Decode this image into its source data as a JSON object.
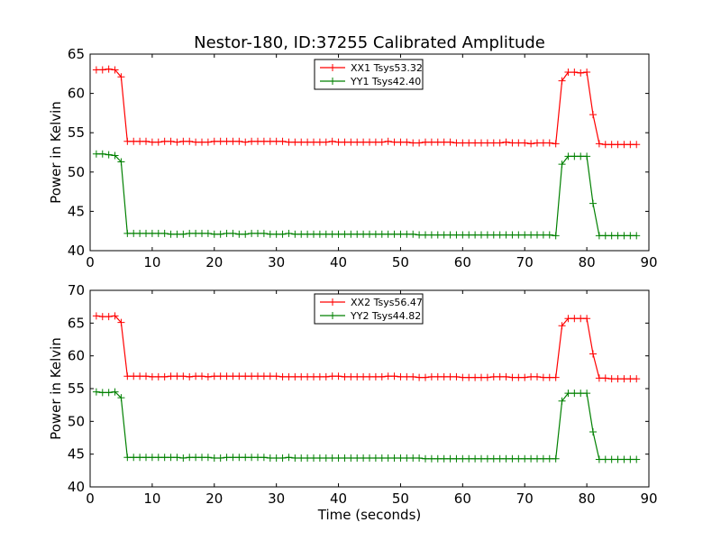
{
  "figure_title": "Nestor-180, ID:37255 Calibrated Amplitude",
  "chart_data": [
    {
      "type": "line",
      "title": "Nestor-180, ID:37255 Calibrated Amplitude",
      "xlabel": "",
      "ylabel": "Power in Kelvin",
      "xlim": [
        0,
        90
      ],
      "ylim": [
        40,
        65
      ],
      "xticks": [
        0,
        10,
        20,
        30,
        40,
        50,
        60,
        70,
        80,
        90
      ],
      "yticks": [
        40,
        45,
        50,
        55,
        60,
        65
      ],
      "grid": false,
      "legend_position": "top-center",
      "series": [
        {
          "name": "XX1 Tsys53.32",
          "color": "#ff0000",
          "x": [
            1,
            2,
            3,
            4,
            5,
            6,
            7,
            8,
            9,
            10,
            11,
            12,
            13,
            14,
            15,
            16,
            17,
            18,
            19,
            20,
            21,
            22,
            23,
            24,
            25,
            26,
            27,
            28,
            29,
            30,
            31,
            32,
            33,
            34,
            35,
            36,
            37,
            38,
            39,
            40,
            41,
            42,
            43,
            44,
            45,
            46,
            47,
            48,
            49,
            50,
            51,
            52,
            53,
            54,
            55,
            56,
            57,
            58,
            59,
            60,
            61,
            62,
            63,
            64,
            65,
            66,
            67,
            68,
            69,
            70,
            71,
            72,
            73,
            74,
            75,
            76,
            77,
            78,
            79,
            80,
            81,
            82,
            83,
            84,
            85,
            86,
            87,
            88
          ],
          "y": [
            63.0,
            63.0,
            63.1,
            63.0,
            62.1,
            53.9,
            53.9,
            53.9,
            53.9,
            53.8,
            53.8,
            53.9,
            53.9,
            53.8,
            53.9,
            53.9,
            53.8,
            53.8,
            53.8,
            53.9,
            53.9,
            53.9,
            53.9,
            53.9,
            53.8,
            53.9,
            53.9,
            53.9,
            53.9,
            53.9,
            53.9,
            53.8,
            53.8,
            53.8,
            53.8,
            53.8,
            53.8,
            53.8,
            53.9,
            53.8,
            53.8,
            53.8,
            53.8,
            53.8,
            53.8,
            53.8,
            53.8,
            53.9,
            53.8,
            53.8,
            53.8,
            53.7,
            53.7,
            53.8,
            53.8,
            53.8,
            53.8,
            53.8,
            53.7,
            53.7,
            53.7,
            53.7,
            53.7,
            53.7,
            53.7,
            53.7,
            53.8,
            53.7,
            53.7,
            53.7,
            53.6,
            53.7,
            53.7,
            53.7,
            53.6,
            61.6,
            62.7,
            62.7,
            62.6,
            62.7,
            57.3,
            53.6,
            53.5,
            53.5,
            53.5,
            53.5,
            53.5,
            53.5
          ]
        },
        {
          "name": "YY1 Tsys42.40",
          "color": "#008000",
          "x": [
            1,
            2,
            3,
            4,
            5,
            6,
            7,
            8,
            9,
            10,
            11,
            12,
            13,
            14,
            15,
            16,
            17,
            18,
            19,
            20,
            21,
            22,
            23,
            24,
            25,
            26,
            27,
            28,
            29,
            30,
            31,
            32,
            33,
            34,
            35,
            36,
            37,
            38,
            39,
            40,
            41,
            42,
            43,
            44,
            45,
            46,
            47,
            48,
            49,
            50,
            51,
            52,
            53,
            54,
            55,
            56,
            57,
            58,
            59,
            60,
            61,
            62,
            63,
            64,
            65,
            66,
            67,
            68,
            69,
            70,
            71,
            72,
            73,
            74,
            75,
            76,
            77,
            78,
            79,
            80,
            81,
            82,
            83,
            84,
            85,
            86,
            87,
            88
          ],
          "y": [
            52.3,
            52.3,
            52.2,
            52.1,
            51.3,
            42.2,
            42.2,
            42.2,
            42.2,
            42.2,
            42.2,
            42.2,
            42.1,
            42.1,
            42.1,
            42.2,
            42.2,
            42.2,
            42.2,
            42.1,
            42.1,
            42.2,
            42.2,
            42.1,
            42.1,
            42.2,
            42.2,
            42.2,
            42.1,
            42.1,
            42.1,
            42.2,
            42.1,
            42.1,
            42.1,
            42.1,
            42.1,
            42.1,
            42.1,
            42.1,
            42.1,
            42.1,
            42.1,
            42.1,
            42.1,
            42.1,
            42.1,
            42.1,
            42.1,
            42.1,
            42.1,
            42.1,
            42.0,
            42.0,
            42.0,
            42.0,
            42.0,
            42.0,
            42.0,
            42.0,
            42.0,
            42.0,
            42.0,
            42.0,
            42.0,
            42.0,
            42.0,
            42.0,
            42.0,
            42.0,
            42.0,
            42.0,
            42.0,
            42.0,
            41.9,
            51.0,
            52.0,
            52.0,
            52.0,
            52.0,
            46.0,
            41.9,
            41.9,
            41.9,
            41.9,
            41.9,
            41.9,
            41.9
          ]
        }
      ]
    },
    {
      "type": "line",
      "title": "",
      "xlabel": "Time (seconds)",
      "ylabel": "Power in Kelvin",
      "xlim": [
        0,
        90
      ],
      "ylim": [
        40,
        70
      ],
      "xticks": [
        0,
        10,
        20,
        30,
        40,
        50,
        60,
        70,
        80,
        90
      ],
      "yticks": [
        40,
        45,
        50,
        55,
        60,
        65,
        70
      ],
      "grid": false,
      "legend_position": "top-center",
      "series": [
        {
          "name": "XX2 Tsys56.47",
          "color": "#ff0000",
          "x": [
            1,
            2,
            3,
            4,
            5,
            6,
            7,
            8,
            9,
            10,
            11,
            12,
            13,
            14,
            15,
            16,
            17,
            18,
            19,
            20,
            21,
            22,
            23,
            24,
            25,
            26,
            27,
            28,
            29,
            30,
            31,
            32,
            33,
            34,
            35,
            36,
            37,
            38,
            39,
            40,
            41,
            42,
            43,
            44,
            45,
            46,
            47,
            48,
            49,
            50,
            51,
            52,
            53,
            54,
            55,
            56,
            57,
            58,
            59,
            60,
            61,
            62,
            63,
            64,
            65,
            66,
            67,
            68,
            69,
            70,
            71,
            72,
            73,
            74,
            75,
            76,
            77,
            78,
            79,
            80,
            81,
            82,
            83,
            84,
            85,
            86,
            87,
            88
          ],
          "y": [
            66.1,
            66.0,
            66.0,
            66.1,
            65.1,
            56.9,
            56.9,
            56.9,
            56.9,
            56.8,
            56.8,
            56.8,
            56.9,
            56.9,
            56.9,
            56.8,
            56.9,
            56.9,
            56.8,
            56.9,
            56.9,
            56.9,
            56.9,
            56.9,
            56.9,
            56.9,
            56.9,
            56.9,
            56.9,
            56.9,
            56.8,
            56.8,
            56.8,
            56.8,
            56.8,
            56.8,
            56.8,
            56.8,
            56.9,
            56.9,
            56.8,
            56.8,
            56.8,
            56.8,
            56.8,
            56.8,
            56.8,
            56.9,
            56.9,
            56.8,
            56.8,
            56.8,
            56.7,
            56.7,
            56.8,
            56.8,
            56.8,
            56.8,
            56.8,
            56.7,
            56.7,
            56.7,
            56.7,
            56.7,
            56.8,
            56.8,
            56.8,
            56.7,
            56.7,
            56.7,
            56.8,
            56.8,
            56.7,
            56.7,
            56.7,
            64.6,
            65.7,
            65.7,
            65.7,
            65.7,
            60.3,
            56.6,
            56.6,
            56.5,
            56.5,
            56.5,
            56.5,
            56.5
          ]
        },
        {
          "name": "YY2 Tsys44.82",
          "color": "#008000",
          "x": [
            1,
            2,
            3,
            4,
            5,
            6,
            7,
            8,
            9,
            10,
            11,
            12,
            13,
            14,
            15,
            16,
            17,
            18,
            19,
            20,
            21,
            22,
            23,
            24,
            25,
            26,
            27,
            28,
            29,
            30,
            31,
            32,
            33,
            34,
            35,
            36,
            37,
            38,
            39,
            40,
            41,
            42,
            43,
            44,
            45,
            46,
            47,
            48,
            49,
            50,
            51,
            52,
            53,
            54,
            55,
            56,
            57,
            58,
            59,
            60,
            61,
            62,
            63,
            64,
            65,
            66,
            67,
            68,
            69,
            70,
            71,
            72,
            73,
            74,
            75,
            76,
            77,
            78,
            79,
            80,
            81,
            82,
            83,
            84,
            85,
            86,
            87,
            88
          ],
          "y": [
            54.5,
            54.4,
            54.4,
            54.5,
            53.6,
            44.5,
            44.5,
            44.5,
            44.5,
            44.5,
            44.5,
            44.5,
            44.5,
            44.5,
            44.4,
            44.5,
            44.5,
            44.5,
            44.5,
            44.4,
            44.4,
            44.5,
            44.5,
            44.5,
            44.5,
            44.5,
            44.5,
            44.5,
            44.4,
            44.4,
            44.4,
            44.5,
            44.4,
            44.4,
            44.4,
            44.4,
            44.4,
            44.4,
            44.4,
            44.4,
            44.4,
            44.4,
            44.4,
            44.4,
            44.4,
            44.4,
            44.4,
            44.4,
            44.4,
            44.4,
            44.4,
            44.4,
            44.4,
            44.3,
            44.3,
            44.3,
            44.3,
            44.3,
            44.3,
            44.3,
            44.3,
            44.3,
            44.3,
            44.3,
            44.3,
            44.3,
            44.3,
            44.3,
            44.3,
            44.3,
            44.3,
            44.3,
            44.3,
            44.3,
            44.3,
            53.1,
            54.3,
            54.3,
            54.3,
            54.3,
            48.4,
            44.2,
            44.2,
            44.2,
            44.2,
            44.2,
            44.2,
            44.2
          ]
        }
      ]
    }
  ]
}
